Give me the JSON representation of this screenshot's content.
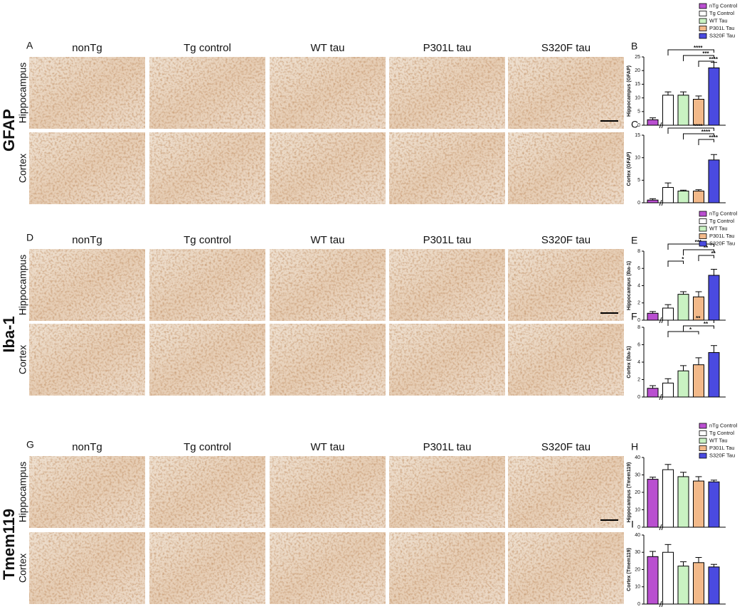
{
  "figure": {
    "sections": [
      {
        "letter": "A",
        "marker": "GFAP",
        "columns": [
          "nonTg",
          "Tg control",
          "WT tau",
          "P301L tau",
          "S320F tau"
        ],
        "rows": [
          "Hippocampus",
          "Cortex"
        ]
      },
      {
        "letter": "D",
        "marker": "Iba-1",
        "columns": [
          "nonTg",
          "Tg control",
          "WT tau",
          "P301L tau",
          "S320F tau"
        ],
        "rows": [
          "Hippocampus",
          "Cortex"
        ]
      },
      {
        "letter": "G",
        "marker": "Tmem119",
        "columns": [
          "nonTg",
          "Tg control",
          "WT tau",
          "P301L tau",
          "S320F tau"
        ],
        "rows": [
          "Hippocampus",
          "Cortex"
        ]
      }
    ]
  },
  "chart_data": [
    {
      "type": "bar",
      "panel": "B",
      "y_label": "Hippocampus (GFAP)",
      "legend": [
        "nTg Control",
        "Tg Control",
        "WT Tau",
        "P301L Tau",
        "S320F Tau"
      ],
      "colors": [
        "#b94fd0",
        "#ffffff",
        "#c9f2c2",
        "#f2b98a",
        "#4a4ae0"
      ],
      "values": [
        2,
        11,
        11,
        9.5,
        21
      ],
      "errors": [
        0.7,
        1.2,
        1.2,
        1.2,
        2
      ],
      "ylim": [
        0,
        25
      ],
      "yticks": [
        0,
        5,
        10,
        15,
        20,
        25
      ],
      "significance": [
        {
          "from": 1,
          "to": 4,
          "label": "****"
        },
        {
          "from": 2,
          "to": 4,
          "label": "***"
        },
        {
          "from": 3,
          "to": 4,
          "label": "****"
        }
      ]
    },
    {
      "type": "bar",
      "panel": "C",
      "y_label": "Cortex (GFAP)",
      "colors": [
        "#b94fd0",
        "#ffffff",
        "#c9f2c2",
        "#f2b98a",
        "#4a4ae0"
      ],
      "values": [
        0.6,
        3.4,
        2.6,
        2.6,
        9.5
      ],
      "errors": [
        0.3,
        1,
        0.2,
        0.3,
        1.2
      ],
      "ylim": [
        0,
        15
      ],
      "yticks": [
        0,
        5,
        10,
        15
      ],
      "significance": [
        {
          "from": 1,
          "to": 4,
          "label": "****"
        },
        {
          "from": 2,
          "to": 4,
          "label": "****"
        },
        {
          "from": 3,
          "to": 4,
          "label": "****"
        }
      ]
    },
    {
      "type": "bar",
      "panel": "E",
      "y_label": "Hippocampus (Iba-1)",
      "legend": [
        "nTg Control",
        "Tg Control",
        "WT Tau",
        "P301L Tau",
        "S320F Tau"
      ],
      "colors": [
        "#b94fd0",
        "#ffffff",
        "#c9f2c2",
        "#f2b98a",
        "#4a4ae0"
      ],
      "values": [
        0.8,
        1.4,
        3.0,
        2.7,
        5.2
      ],
      "errors": [
        0.2,
        0.4,
        0.3,
        0.6,
        0.7
      ],
      "ylim": [
        0,
        8
      ],
      "yticks": [
        0,
        2,
        4,
        6,
        8
      ],
      "significance": [
        {
          "from": 1,
          "to": 4,
          "label": "***"
        },
        {
          "from": 2,
          "to": 4,
          "label": "**"
        },
        {
          "from": 3,
          "to": 4,
          "label": "**"
        },
        {
          "from": 1,
          "to": 2,
          "label": "*"
        }
      ]
    },
    {
      "type": "bar",
      "panel": "F",
      "y_label": "Cortex (Iba-1)",
      "colors": [
        "#b94fd0",
        "#ffffff",
        "#c9f2c2",
        "#f2b98a",
        "#4a4ae0"
      ],
      "values": [
        1.0,
        1.6,
        3.0,
        3.7,
        5.1
      ],
      "errors": [
        0.3,
        0.5,
        0.6,
        0.8,
        0.8
      ],
      "ylim": [
        0,
        8
      ],
      "yticks": [
        0,
        2,
        4,
        6,
        8
      ],
      "significance": [
        {
          "from": 1,
          "to": 4,
          "label": "**"
        },
        {
          "from": 2,
          "to": 4,
          "label": "**"
        },
        {
          "from": 1,
          "to": 3,
          "label": "*"
        }
      ]
    },
    {
      "type": "bar",
      "panel": "H",
      "y_label": "Hippocampus (Tmem119)",
      "legend": [
        "nTg Control",
        "Tg Control",
        "WT Tau",
        "P301L Tau",
        "S320F Tau"
      ],
      "colors": [
        "#b94fd0",
        "#ffffff",
        "#c9f2c2",
        "#f2b98a",
        "#4a4ae0"
      ],
      "values": [
        27.5,
        33,
        29,
        26.5,
        26
      ],
      "errors": [
        1.2,
        3,
        2.5,
        2.5,
        1
      ],
      "ylim": [
        0,
        40
      ],
      "yticks": [
        0,
        10,
        20,
        30,
        40
      ]
    },
    {
      "type": "bar",
      "panel": "I",
      "y_label": "Cortex (Tmem119)",
      "colors": [
        "#b94fd0",
        "#ffffff",
        "#c9f2c2",
        "#f2b98a",
        "#4a4ae0"
      ],
      "values": [
        27.5,
        30,
        22,
        24,
        21.5
      ],
      "errors": [
        3,
        4.5,
        2.5,
        3,
        1.5
      ],
      "ylim": [
        0,
        40
      ],
      "yticks": [
        0,
        10,
        20,
        30,
        40
      ]
    }
  ]
}
